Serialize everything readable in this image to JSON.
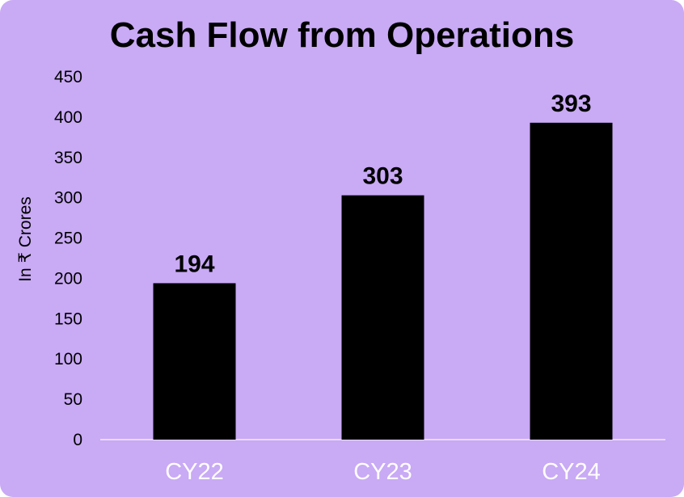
{
  "chart_data": {
    "type": "bar",
    "title": "Cash Flow from Operations",
    "ylabel": "In ₹ Crores",
    "xlabel": "",
    "categories": [
      "CY22",
      "CY23",
      "CY24"
    ],
    "values": [
      194,
      303,
      393
    ],
    "data_labels": [
      "194",
      "303",
      "393"
    ],
    "ylim": [
      0,
      450
    ],
    "yticks": [
      0,
      50,
      100,
      150,
      200,
      250,
      300,
      350,
      400,
      450
    ],
    "ytick_labels": [
      "0",
      "50",
      "100",
      "150",
      "200",
      "250",
      "300",
      "350",
      "400",
      "450"
    ],
    "grid": false,
    "legend": "none",
    "colors": {
      "background": "#c9aaf5",
      "bar": "#000000",
      "category_text": "#ffffff",
      "axis_line": "#e6dcf7"
    }
  }
}
